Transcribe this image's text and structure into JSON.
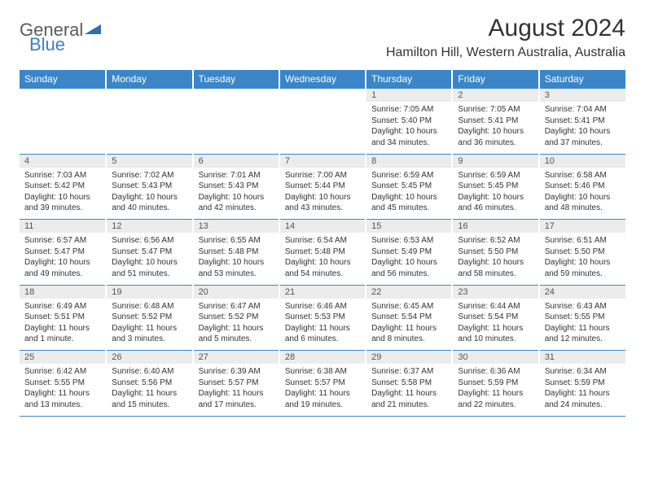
{
  "logo": {
    "text_gray": "General",
    "text_blue": "Blue",
    "tri_color": "#2f6db3"
  },
  "title": "August 2024",
  "location": "Hamilton Hill, Western Australia, Australia",
  "colors": {
    "header_bg": "#3a86c8",
    "header_text": "#ffffff",
    "daynum_bg": "#ececec",
    "rule": "#3a86c8",
    "body_text": "#333333"
  },
  "day_headers": [
    "Sunday",
    "Monday",
    "Tuesday",
    "Wednesday",
    "Thursday",
    "Friday",
    "Saturday"
  ],
  "weeks": [
    [
      {
        "n": "",
        "sr": "",
        "ss": "",
        "dl": ""
      },
      {
        "n": "",
        "sr": "",
        "ss": "",
        "dl": ""
      },
      {
        "n": "",
        "sr": "",
        "ss": "",
        "dl": ""
      },
      {
        "n": "",
        "sr": "",
        "ss": "",
        "dl": ""
      },
      {
        "n": "1",
        "sr": "Sunrise: 7:05 AM",
        "ss": "Sunset: 5:40 PM",
        "dl": "Daylight: 10 hours and 34 minutes."
      },
      {
        "n": "2",
        "sr": "Sunrise: 7:05 AM",
        "ss": "Sunset: 5:41 PM",
        "dl": "Daylight: 10 hours and 36 minutes."
      },
      {
        "n": "3",
        "sr": "Sunrise: 7:04 AM",
        "ss": "Sunset: 5:41 PM",
        "dl": "Daylight: 10 hours and 37 minutes."
      }
    ],
    [
      {
        "n": "4",
        "sr": "Sunrise: 7:03 AM",
        "ss": "Sunset: 5:42 PM",
        "dl": "Daylight: 10 hours and 39 minutes."
      },
      {
        "n": "5",
        "sr": "Sunrise: 7:02 AM",
        "ss": "Sunset: 5:43 PM",
        "dl": "Daylight: 10 hours and 40 minutes."
      },
      {
        "n": "6",
        "sr": "Sunrise: 7:01 AM",
        "ss": "Sunset: 5:43 PM",
        "dl": "Daylight: 10 hours and 42 minutes."
      },
      {
        "n": "7",
        "sr": "Sunrise: 7:00 AM",
        "ss": "Sunset: 5:44 PM",
        "dl": "Daylight: 10 hours and 43 minutes."
      },
      {
        "n": "8",
        "sr": "Sunrise: 6:59 AM",
        "ss": "Sunset: 5:45 PM",
        "dl": "Daylight: 10 hours and 45 minutes."
      },
      {
        "n": "9",
        "sr": "Sunrise: 6:59 AM",
        "ss": "Sunset: 5:45 PM",
        "dl": "Daylight: 10 hours and 46 minutes."
      },
      {
        "n": "10",
        "sr": "Sunrise: 6:58 AM",
        "ss": "Sunset: 5:46 PM",
        "dl": "Daylight: 10 hours and 48 minutes."
      }
    ],
    [
      {
        "n": "11",
        "sr": "Sunrise: 6:57 AM",
        "ss": "Sunset: 5:47 PM",
        "dl": "Daylight: 10 hours and 49 minutes."
      },
      {
        "n": "12",
        "sr": "Sunrise: 6:56 AM",
        "ss": "Sunset: 5:47 PM",
        "dl": "Daylight: 10 hours and 51 minutes."
      },
      {
        "n": "13",
        "sr": "Sunrise: 6:55 AM",
        "ss": "Sunset: 5:48 PM",
        "dl": "Daylight: 10 hours and 53 minutes."
      },
      {
        "n": "14",
        "sr": "Sunrise: 6:54 AM",
        "ss": "Sunset: 5:48 PM",
        "dl": "Daylight: 10 hours and 54 minutes."
      },
      {
        "n": "15",
        "sr": "Sunrise: 6:53 AM",
        "ss": "Sunset: 5:49 PM",
        "dl": "Daylight: 10 hours and 56 minutes."
      },
      {
        "n": "16",
        "sr": "Sunrise: 6:52 AM",
        "ss": "Sunset: 5:50 PM",
        "dl": "Daylight: 10 hours and 58 minutes."
      },
      {
        "n": "17",
        "sr": "Sunrise: 6:51 AM",
        "ss": "Sunset: 5:50 PM",
        "dl": "Daylight: 10 hours and 59 minutes."
      }
    ],
    [
      {
        "n": "18",
        "sr": "Sunrise: 6:49 AM",
        "ss": "Sunset: 5:51 PM",
        "dl": "Daylight: 11 hours and 1 minute."
      },
      {
        "n": "19",
        "sr": "Sunrise: 6:48 AM",
        "ss": "Sunset: 5:52 PM",
        "dl": "Daylight: 11 hours and 3 minutes."
      },
      {
        "n": "20",
        "sr": "Sunrise: 6:47 AM",
        "ss": "Sunset: 5:52 PM",
        "dl": "Daylight: 11 hours and 5 minutes."
      },
      {
        "n": "21",
        "sr": "Sunrise: 6:46 AM",
        "ss": "Sunset: 5:53 PM",
        "dl": "Daylight: 11 hours and 6 minutes."
      },
      {
        "n": "22",
        "sr": "Sunrise: 6:45 AM",
        "ss": "Sunset: 5:54 PM",
        "dl": "Daylight: 11 hours and 8 minutes."
      },
      {
        "n": "23",
        "sr": "Sunrise: 6:44 AM",
        "ss": "Sunset: 5:54 PM",
        "dl": "Daylight: 11 hours and 10 minutes."
      },
      {
        "n": "24",
        "sr": "Sunrise: 6:43 AM",
        "ss": "Sunset: 5:55 PM",
        "dl": "Daylight: 11 hours and 12 minutes."
      }
    ],
    [
      {
        "n": "25",
        "sr": "Sunrise: 6:42 AM",
        "ss": "Sunset: 5:55 PM",
        "dl": "Daylight: 11 hours and 13 minutes."
      },
      {
        "n": "26",
        "sr": "Sunrise: 6:40 AM",
        "ss": "Sunset: 5:56 PM",
        "dl": "Daylight: 11 hours and 15 minutes."
      },
      {
        "n": "27",
        "sr": "Sunrise: 6:39 AM",
        "ss": "Sunset: 5:57 PM",
        "dl": "Daylight: 11 hours and 17 minutes."
      },
      {
        "n": "28",
        "sr": "Sunrise: 6:38 AM",
        "ss": "Sunset: 5:57 PM",
        "dl": "Daylight: 11 hours and 19 minutes."
      },
      {
        "n": "29",
        "sr": "Sunrise: 6:37 AM",
        "ss": "Sunset: 5:58 PM",
        "dl": "Daylight: 11 hours and 21 minutes."
      },
      {
        "n": "30",
        "sr": "Sunrise: 6:36 AM",
        "ss": "Sunset: 5:59 PM",
        "dl": "Daylight: 11 hours and 22 minutes."
      },
      {
        "n": "31",
        "sr": "Sunrise: 6:34 AM",
        "ss": "Sunset: 5:59 PM",
        "dl": "Daylight: 11 hours and 24 minutes."
      }
    ]
  ]
}
